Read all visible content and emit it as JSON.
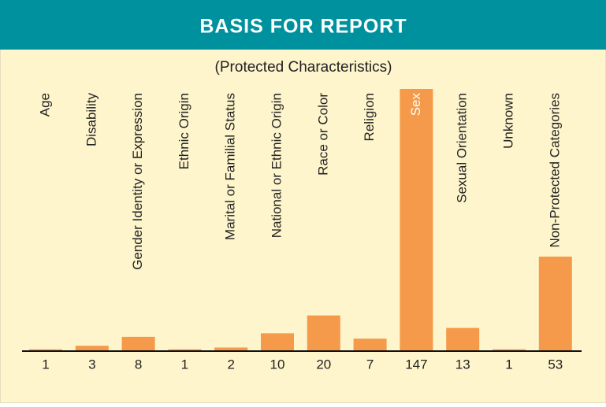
{
  "chart_data": {
    "type": "bar",
    "title": "BASIS FOR REPORT",
    "subtitle": "(Protected Characteristics)",
    "categories": [
      "Age",
      "Disability",
      "Gender Identity or Expression",
      "Ethnic Origin",
      "Marital or Familial Status",
      "National or Ethnic Origin",
      "Race or Color",
      "Religion",
      "Sex",
      "Sexual Orientation",
      "Unknown",
      "Non-Protected Categories"
    ],
    "values": [
      1,
      3,
      8,
      1,
      2,
      10,
      20,
      7,
      147,
      13,
      1,
      53
    ],
    "color": "#f59a4a"
  }
}
